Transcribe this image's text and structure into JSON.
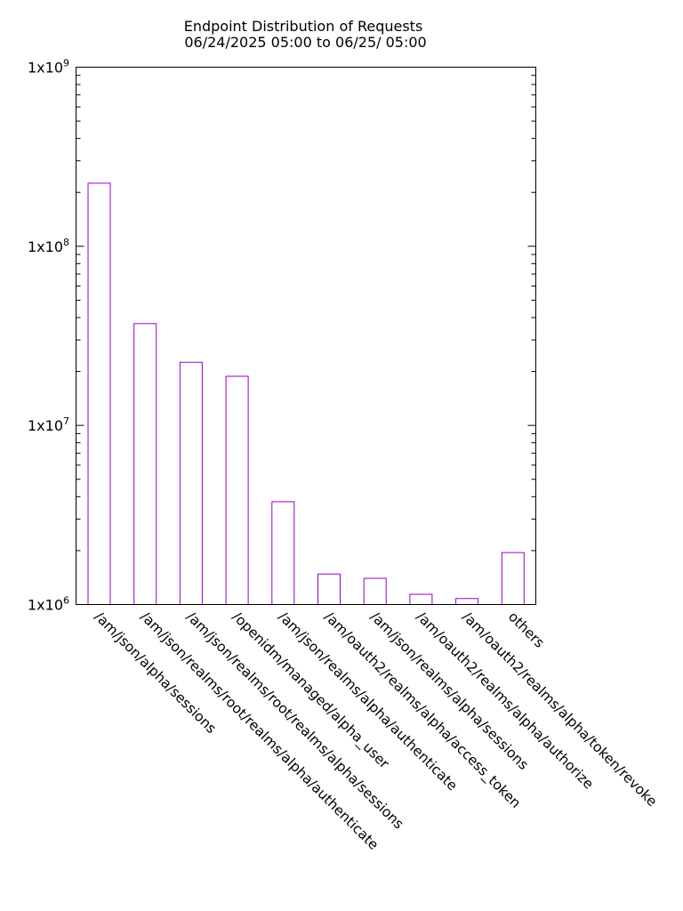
{
  "chart_data": {
    "type": "bar",
    "title": "Endpoint Distribution of Requests",
    "subtitle": " 06/24/2025 05:00 to 06/25/ 05:00",
    "xlabel": "",
    "ylabel": "",
    "y_scale": "log",
    "ylim": [
      1000000,
      1000000000
    ],
    "y_tick_labels": [
      "1x10",
      "1x10",
      "1x10",
      "1x10"
    ],
    "y_tick_exponents": [
      "6",
      "7",
      "8",
      "9"
    ],
    "y_tick_values": [
      1000000,
      10000000,
      100000000,
      1000000000
    ],
    "grid": false,
    "legend": "none",
    "bar_color": "#9400d3",
    "categories": [
      "/am/json/alpha/sessions",
      "/am/json/realms/root/realms/alpha/authenticate",
      "/am/json/realms/root/realms/alpha/sessions",
      "/openidm/managed/alpha_user",
      "/am/json/realms/alpha/authenticate",
      "/am/oauth2/realms/alpha/access_token",
      "/am/json/realms/alpha/sessions",
      "/am/oauth2/realms/alpha/authorize",
      "/am/oauth2/realms/alpha/token/revoke",
      "others"
    ],
    "values": [
      225000000,
      37000000,
      22500000,
      18800000,
      3750000,
      1480000,
      1400000,
      1140000,
      1080000,
      1950000
    ]
  }
}
